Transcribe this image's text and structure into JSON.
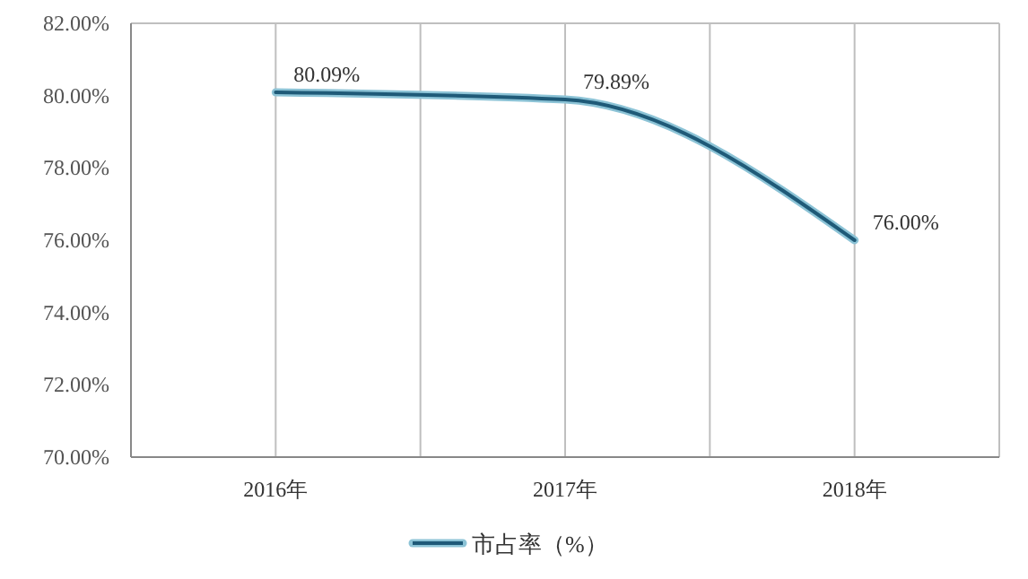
{
  "chart_data": {
    "type": "line",
    "categories": [
      "2016年",
      "2017年",
      "2018年"
    ],
    "series": [
      {
        "name": "市占率（%）",
        "color": "#1f5a78",
        "values": [
          80.09,
          79.89,
          76.0
        ],
        "value_labels": [
          "80.09%",
          "79.89%",
          "76.00%"
        ]
      }
    ],
    "ylim": [
      70,
      82
    ],
    "yticks": [
      {
        "value": 70,
        "label": "70.00%"
      },
      {
        "value": 72,
        "label": "72.00%"
      },
      {
        "value": 74,
        "label": "74.00%"
      },
      {
        "value": 76,
        "label": "76.00%"
      },
      {
        "value": 78,
        "label": "78.00%"
      },
      {
        "value": 80,
        "label": "80.00%"
      },
      {
        "value": 82,
        "label": "82.00%"
      }
    ],
    "grid": "x",
    "legend": "bottom",
    "marker": "none",
    "line_style": "solid"
  }
}
